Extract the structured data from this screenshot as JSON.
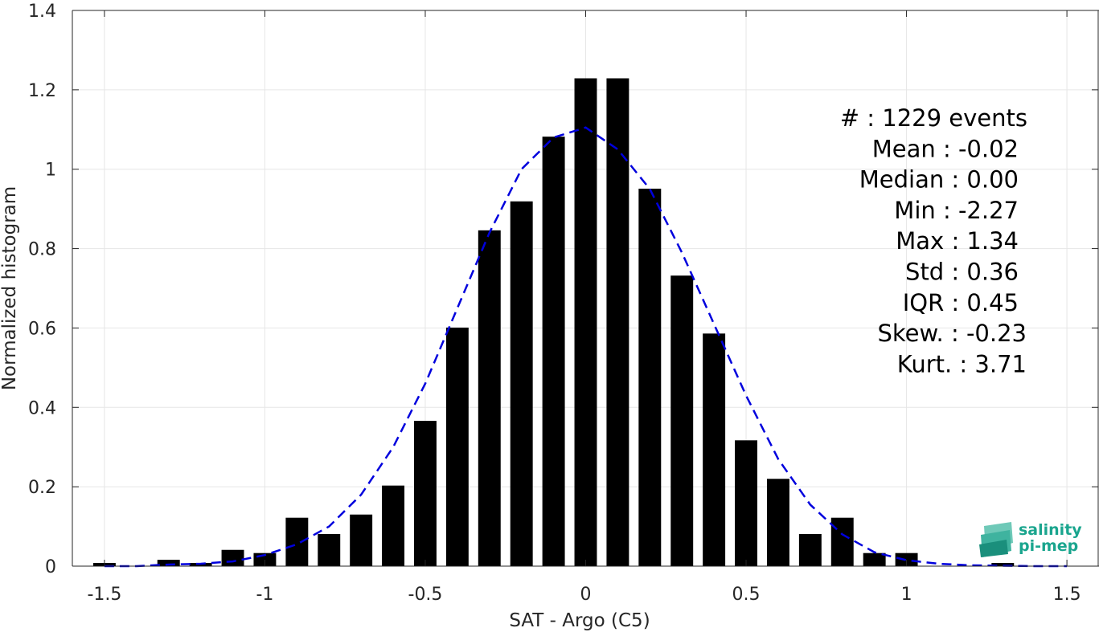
{
  "chart_data": {
    "type": "bar",
    "xlabel": "SAT - Argo (C5)",
    "ylabel": "Normalized histogram",
    "xlim": [
      -1.6,
      1.6
    ],
    "ylim": [
      0,
      1.4
    ],
    "x_ticks": [
      -1.5,
      -1,
      -0.5,
      0,
      0.5,
      1,
      1.5
    ],
    "x_tick_labels": [
      "-1.5",
      "-1",
      "-0.5",
      "0",
      "0.5",
      "1",
      "1.5"
    ],
    "y_ticks": [
      0,
      0.2,
      0.4,
      0.6,
      0.8,
      1,
      1.2,
      1.4
    ],
    "y_tick_labels": [
      "0",
      "0.2",
      "0.4",
      "0.6",
      "0.8",
      "1",
      "1.2",
      "1.4"
    ],
    "grid": true,
    "bar_width": 0.07,
    "bars": {
      "x": [
        -1.5,
        -1.3,
        -1.2,
        -1.1,
        -1.0,
        -0.9,
        -0.8,
        -0.7,
        -0.6,
        -0.5,
        -0.4,
        -0.3,
        -0.2,
        -0.1,
        0.0,
        0.1,
        0.2,
        0.3,
        0.4,
        0.5,
        0.6,
        0.7,
        0.8,
        0.9,
        1.0,
        1.3
      ],
      "values": [
        0.008,
        0.016,
        0.008,
        0.041,
        0.033,
        0.122,
        0.081,
        0.13,
        0.203,
        0.366,
        0.601,
        0.846,
        0.919,
        1.082,
        1.229,
        1.229,
        0.951,
        0.732,
        0.586,
        0.317,
        0.22,
        0.081,
        0.122,
        0.033,
        0.033,
        0.008
      ],
      "color": "#000000"
    },
    "fit_curve": {
      "style": "dashed",
      "color": "#0000dd",
      "x": [
        -1.5,
        -1.4,
        -1.3,
        -1.2,
        -1.1,
        -1.0,
        -0.9,
        -0.8,
        -0.7,
        -0.6,
        -0.5,
        -0.4,
        -0.3,
        -0.2,
        -0.1,
        0.0,
        0.1,
        0.2,
        0.3,
        0.4,
        0.5,
        0.6,
        0.7,
        0.8,
        0.9,
        1.0,
        1.1,
        1.2,
        1.3,
        1.4,
        1.5
      ],
      "y": [
        0.0,
        0.0,
        0.004,
        0.006,
        0.012,
        0.028,
        0.055,
        0.1,
        0.18,
        0.3,
        0.46,
        0.65,
        0.84,
        1.0,
        1.08,
        1.105,
        1.05,
        0.95,
        0.79,
        0.61,
        0.43,
        0.27,
        0.155,
        0.08,
        0.035,
        0.015,
        0.006,
        0.002,
        0.001,
        0.0,
        0.0
      ]
    },
    "annotations": [
      "#  : 1229 events",
      "Mean : -0.02",
      "Median : 0.00",
      "Min : -2.27",
      "Max : 1.34",
      "Std : 0.36",
      "IQR : 0.45",
      "Skew. : -0.23",
      "Kurt. : 3.71"
    ]
  },
  "logo": {
    "line1": "salinity",
    "line2": "pi-mep",
    "color": "#1aa58e"
  }
}
